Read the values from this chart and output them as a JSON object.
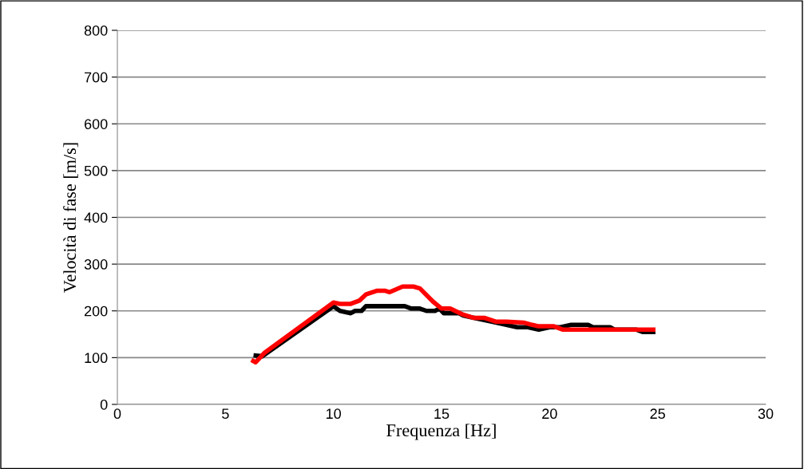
{
  "chart_data": {
    "type": "line",
    "xlabel": "Frequenza [Hz]",
    "ylabel": "Velocità di fase [m/s]",
    "xlim": [
      0,
      30
    ],
    "xticks": [
      0,
      5,
      10,
      15,
      20,
      25,
      30
    ],
    "ylim": [
      0,
      800
    ],
    "yticks": [
      0,
      100,
      200,
      300,
      400,
      500,
      600,
      700,
      800
    ],
    "grid": "y",
    "legend": false,
    "marker": "none",
    "line_style": "solid",
    "series": [
      {
        "color": "#000000",
        "x": [
          6.3,
          6.7,
          10.0,
          10.3,
          10.8,
          11.0,
          11.3,
          11.5,
          13.3,
          13.6,
          14.0,
          14.3,
          14.7,
          14.9,
          15.1,
          15.8,
          16.0,
          16.5,
          17.5,
          18.0,
          18.5,
          19.0,
          19.5,
          20.0,
          20.5,
          21.0,
          21.8,
          22.0,
          22.8,
          23.0,
          24.0,
          24.3,
          24.9
        ],
        "values": [
          105,
          103,
          210,
          200,
          195,
          200,
          200,
          210,
          210,
          205,
          205,
          200,
          200,
          205,
          195,
          195,
          190,
          185,
          175,
          170,
          165,
          165,
          160,
          165,
          165,
          170,
          170,
          165,
          165,
          160,
          160,
          155,
          155
        ]
      },
      {
        "color": "#ff0000",
        "x": [
          6.2,
          6.4,
          6.8,
          10.0,
          10.3,
          10.8,
          11.2,
          11.5,
          12.0,
          12.4,
          12.6,
          13.2,
          13.7,
          14.0,
          14.6,
          15.0,
          15.4,
          16.0,
          16.5,
          17.0,
          17.5,
          18.0,
          18.8,
          19.2,
          19.5,
          20.2,
          20.6,
          22.0,
          23.0,
          24.0,
          24.9
        ],
        "values": [
          95,
          90,
          110,
          218,
          215,
          215,
          222,
          235,
          243,
          243,
          240,
          252,
          252,
          248,
          220,
          205,
          205,
          192,
          185,
          185,
          177,
          177,
          175,
          170,
          167,
          167,
          160,
          160,
          160,
          160,
          160
        ]
      }
    ]
  }
}
